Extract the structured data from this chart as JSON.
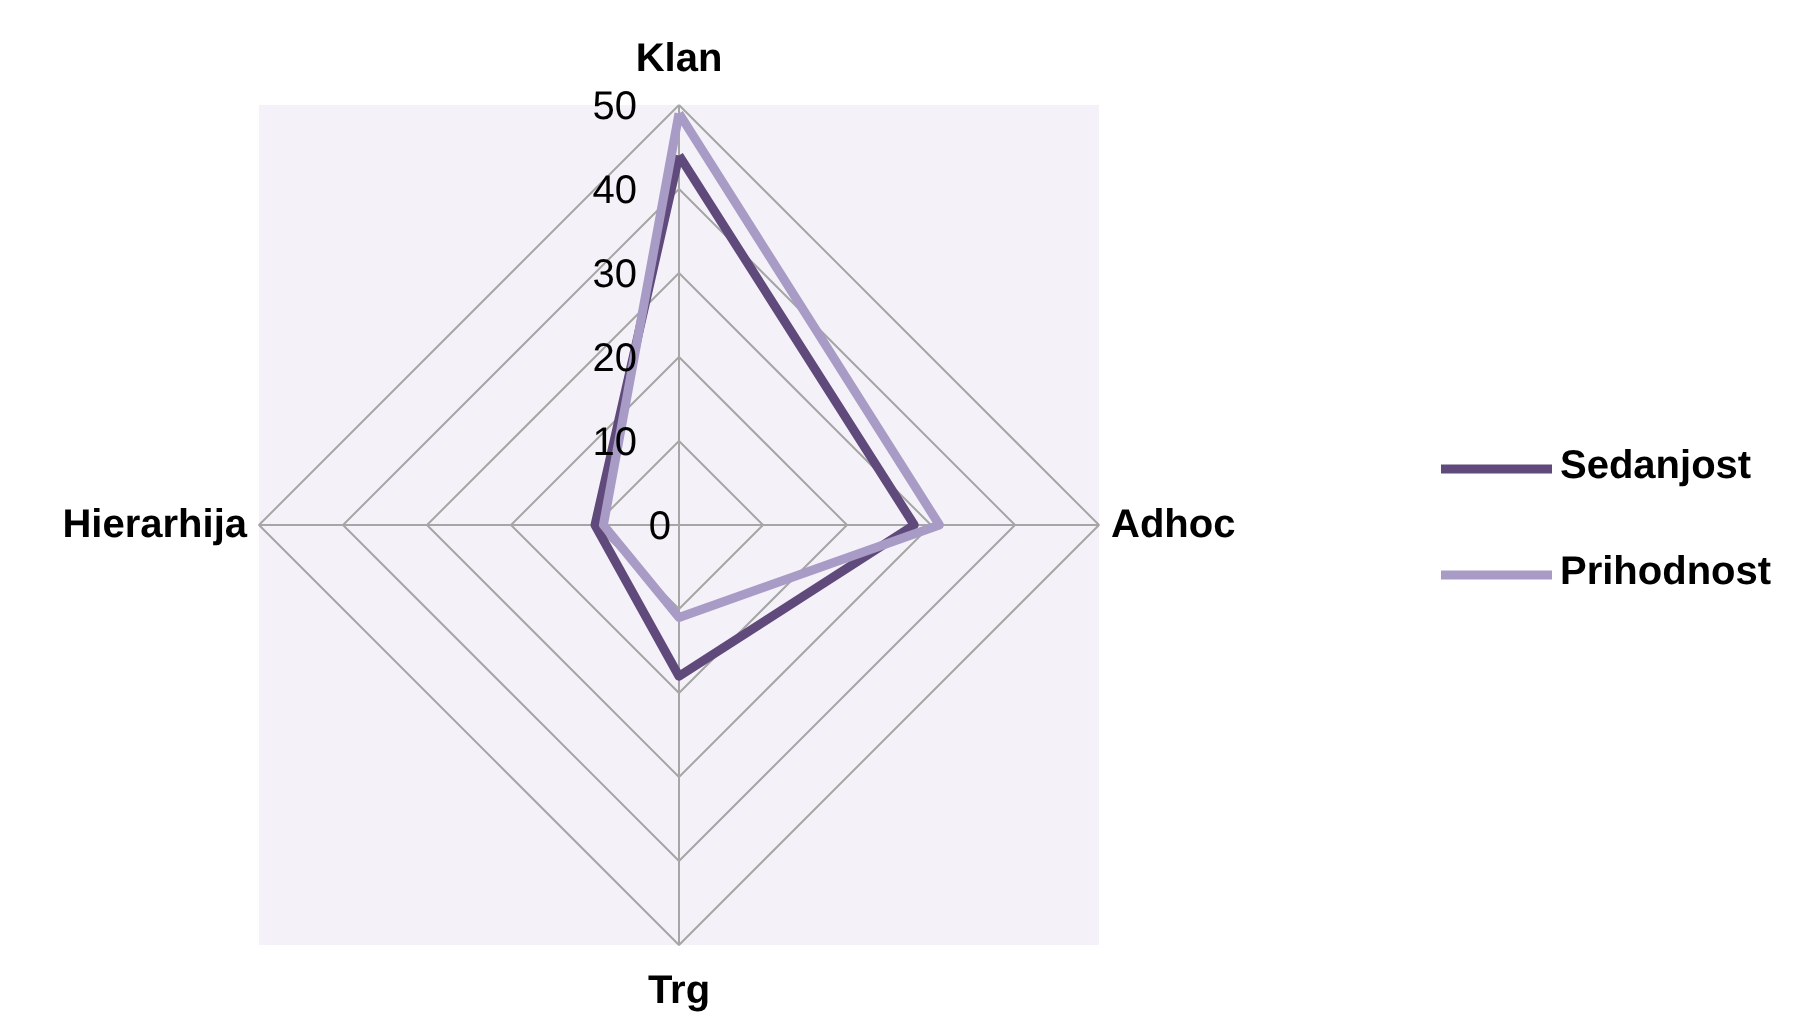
{
  "chart_data": {
    "type": "radar",
    "categories": [
      "Klan",
      "Adhoc",
      "Trg",
      "Hierarhija"
    ],
    "series": [
      {
        "name": "Sedanjost",
        "color": "#604a7b",
        "values": [
          44,
          28,
          18,
          10
        ]
      },
      {
        "name": "Prihodnost",
        "color": "#a89bc6",
        "values": [
          49,
          31,
          11,
          9
        ]
      }
    ],
    "ylim": [
      0,
      50
    ],
    "yticks": [
      0,
      10,
      20,
      30,
      40,
      50
    ],
    "grid": true,
    "legend": "right"
  }
}
